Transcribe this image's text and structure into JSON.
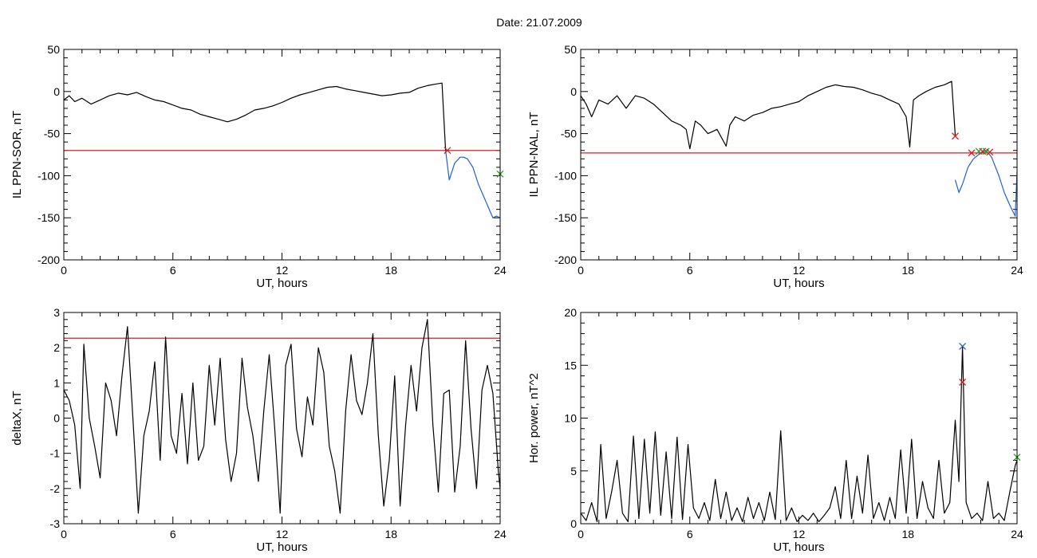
{
  "title": "Date:  21.07.2009",
  "chart_data": [
    {
      "type": "line",
      "xlabel": "UT, hours",
      "ylabel": "IL PPN-SOR, nT",
      "xlim": [
        0,
        24
      ],
      "ylim": [
        -200,
        50
      ],
      "xticks": [
        0,
        6,
        12,
        18,
        24
      ],
      "yticks": [
        -200,
        -150,
        -100,
        -50,
        0,
        50
      ],
      "threshold": -70,
      "series": [
        {
          "color": "#000000",
          "x": [
            0,
            0.3,
            0.6,
            1.0,
            1.5,
            2.0,
            2.5,
            3.0,
            3.5,
            4.0,
            4.5,
            5.0,
            5.5,
            6.0,
            6.5,
            7.0,
            7.5,
            8.0,
            8.5,
            9.0,
            9.5,
            10.0,
            10.5,
            11.0,
            11.5,
            12.0,
            12.5,
            13.0,
            13.5,
            14.0,
            14.5,
            15.0,
            15.5,
            16.0,
            16.5,
            17.0,
            17.5,
            18.0,
            18.5,
            19.0,
            19.5,
            20.0,
            20.5,
            20.8,
            21.0
          ],
          "values": [
            -10,
            -5,
            -12,
            -8,
            -15,
            -10,
            -5,
            -2,
            -4,
            -1,
            -6,
            -10,
            -12,
            -16,
            -20,
            -22,
            -27,
            -30,
            -33,
            -36,
            -33,
            -28,
            -22,
            -20,
            -17,
            -13,
            -8,
            -4,
            -1,
            2,
            5,
            6,
            3,
            1,
            -1,
            -3,
            -5,
            -4,
            -2,
            -1,
            4,
            7,
            9,
            10,
            -70
          ]
        },
        {
          "color": "#1f5fd6",
          "x": [
            21.0,
            21.2,
            21.5,
            21.8,
            22.0,
            22.2,
            22.5,
            22.8,
            23.0,
            23.2,
            23.4,
            23.6,
            23.8,
            24.0
          ],
          "values": [
            -70,
            -105,
            -85,
            -78,
            -78,
            -80,
            -90,
            -110,
            -120,
            -130,
            -140,
            -150,
            -148,
            -150
          ]
        }
      ],
      "markers": [
        {
          "x": 21.1,
          "y": -70,
          "color": "#d62020"
        },
        {
          "x": 24.0,
          "y": -98,
          "color": "#20a020"
        }
      ]
    },
    {
      "type": "line",
      "xlabel": "UT, hours",
      "ylabel": "IL PPN-NAL, nT",
      "xlim": [
        0,
        24
      ],
      "ylim": [
        -200,
        50
      ],
      "xticks": [
        0,
        6,
        12,
        18,
        24
      ],
      "yticks": [
        -200,
        -150,
        -100,
        -50,
        0,
        50
      ],
      "threshold": -73,
      "series": [
        {
          "color": "#000000",
          "x": [
            0,
            0.3,
            0.6,
            1.0,
            1.5,
            2.0,
            2.5,
            3.0,
            3.5,
            4.0,
            4.5,
            5.0,
            5.5,
            5.8,
            6.0,
            6.3,
            6.6,
            7.0,
            7.5,
            8.0,
            8.2,
            8.5,
            9.0,
            9.5,
            10.0,
            10.5,
            11.0,
            11.5,
            12.0,
            12.5,
            13.0,
            13.5,
            14.0,
            14.5,
            15.0,
            15.5,
            16.0,
            16.5,
            17.0,
            17.5,
            17.9,
            18.1,
            18.3,
            18.6,
            19.0,
            19.5,
            20.0,
            20.4,
            20.6
          ],
          "values": [
            -5,
            -15,
            -30,
            -10,
            -15,
            -5,
            -20,
            -5,
            -8,
            -15,
            -25,
            -35,
            -40,
            -45,
            -68,
            -35,
            -40,
            -50,
            -45,
            -65,
            -40,
            -30,
            -35,
            -28,
            -25,
            -20,
            -18,
            -15,
            -12,
            -5,
            0,
            5,
            8,
            6,
            5,
            2,
            -2,
            -5,
            -10,
            -15,
            -30,
            -66,
            -10,
            -5,
            0,
            5,
            8,
            12,
            -52
          ]
        },
        {
          "color": "#1f5fd6",
          "x": [
            20.6,
            20.8,
            21.0,
            21.3,
            21.6,
            22.0,
            22.3,
            22.6,
            23.0,
            23.3,
            23.6,
            23.9,
            24.0
          ],
          "values": [
            -105,
            -120,
            -110,
            -90,
            -80,
            -73,
            -70,
            -78,
            -100,
            -120,
            -135,
            -148,
            -95
          ]
        }
      ],
      "markers": [
        {
          "x": 20.6,
          "y": -53,
          "color": "#d62020"
        },
        {
          "x": 21.5,
          "y": -73,
          "color": "#d62020"
        },
        {
          "x": 21.9,
          "y": -71,
          "color": "#20a020"
        },
        {
          "x": 22.1,
          "y": -71,
          "color": "#d62020"
        },
        {
          "x": 22.3,
          "y": -71,
          "color": "#20a020"
        },
        {
          "x": 22.5,
          "y": -72,
          "color": "#d62020"
        }
      ]
    },
    {
      "type": "line",
      "xlabel": "UT, hours",
      "ylabel": "deltaX, nT",
      "xlim": [
        0,
        24
      ],
      "ylim": [
        -3,
        3
      ],
      "xticks": [
        0,
        6,
        12,
        18,
        24
      ],
      "yticks": [
        -3,
        -2,
        -1,
        0,
        1,
        2,
        3
      ],
      "threshold": 2.27,
      "series": [
        {
          "color": "#000000",
          "x": [
            0,
            0.3,
            0.6,
            0.9,
            1.1,
            1.4,
            1.7,
            2.0,
            2.3,
            2.6,
            2.9,
            3.2,
            3.5,
            3.8,
            4.1,
            4.4,
            4.7,
            5.0,
            5.3,
            5.6,
            5.9,
            6.2,
            6.5,
            6.8,
            7.1,
            7.4,
            7.7,
            8.0,
            8.3,
            8.6,
            8.9,
            9.2,
            9.5,
            9.8,
            10.1,
            10.4,
            10.7,
            11.0,
            11.3,
            11.6,
            11.9,
            12.2,
            12.5,
            12.8,
            13.1,
            13.4,
            13.7,
            14.0,
            14.3,
            14.6,
            14.9,
            15.2,
            15.5,
            15.8,
            16.1,
            16.4,
            16.7,
            17.0,
            17.3,
            17.6,
            17.9,
            18.2,
            18.5,
            18.8,
            19.1,
            19.4,
            19.7,
            20.0,
            20.3,
            20.6,
            20.9,
            21.2,
            21.5,
            21.8,
            22.1,
            22.4,
            22.7,
            23.0,
            23.3,
            23.6,
            23.9,
            24.0
          ],
          "values": [
            0.8,
            0.5,
            -0.2,
            -2.0,
            2.1,
            0.0,
            -0.8,
            -1.7,
            1.0,
            0.5,
            -0.5,
            1.2,
            2.6,
            0.0,
            -2.7,
            -0.5,
            0.2,
            1.6,
            -1.2,
            2.3,
            -0.5,
            -1.0,
            0.7,
            -1.3,
            1.0,
            -1.2,
            -0.8,
            1.5,
            -0.2,
            1.7,
            -0.6,
            -1.8,
            -1.0,
            1.7,
            0.3,
            -0.5,
            -1.8,
            0.2,
            1.8,
            -0.3,
            -2.7,
            1.5,
            2.1,
            -0.3,
            -1.1,
            0.6,
            -0.2,
            2.0,
            1.3,
            -0.8,
            -1.5,
            -2.7,
            0.2,
            1.8,
            0.5,
            0.1,
            1.0,
            2.4,
            -0.5,
            -2.5,
            -1.2,
            1.2,
            -2.5,
            -0.2,
            1.5,
            0.2,
            2.0,
            2.8,
            -0.2,
            -2.1,
            0.7,
            0.8,
            -2.1,
            -0.8,
            2.2,
            -0.3,
            -2.0,
            0.8,
            1.5,
            0.7,
            -1.5,
            -2.0
          ]
        }
      ],
      "markers": []
    },
    {
      "type": "line",
      "xlabel": "UT, hours",
      "ylabel": "Hor. power, nT^2",
      "xlim": [
        0,
        24
      ],
      "ylim": [
        0,
        20
      ],
      "xticks": [
        0,
        6,
        12,
        18,
        24
      ],
      "yticks": [
        0,
        5,
        10,
        15,
        20
      ],
      "threshold": null,
      "series": [
        {
          "color": "#000000",
          "x": [
            0,
            0.3,
            0.6,
            0.9,
            1.1,
            1.4,
            1.7,
            2.0,
            2.3,
            2.6,
            2.9,
            3.2,
            3.5,
            3.8,
            4.1,
            4.4,
            4.7,
            5.0,
            5.3,
            5.6,
            5.9,
            6.2,
            6.5,
            6.8,
            7.1,
            7.4,
            7.7,
            8.0,
            8.3,
            8.6,
            8.9,
            9.2,
            9.5,
            9.8,
            10.1,
            10.4,
            10.7,
            11.0,
            11.3,
            11.6,
            11.9,
            12.2,
            12.5,
            12.8,
            13.1,
            13.4,
            13.7,
            14.0,
            14.3,
            14.6,
            14.9,
            15.2,
            15.5,
            15.8,
            16.1,
            16.4,
            16.7,
            17.0,
            17.3,
            17.6,
            17.9,
            18.2,
            18.5,
            18.8,
            19.1,
            19.4,
            19.7,
            20.0,
            20.3,
            20.6,
            20.8,
            21.0,
            21.2,
            21.5,
            21.8,
            22.1,
            22.4,
            22.7,
            23.0,
            23.3,
            23.6,
            23.9,
            24.0
          ],
          "values": [
            1.0,
            0.3,
            2.0,
            0.2,
            7.5,
            0.5,
            3.0,
            6.0,
            1.0,
            0.2,
            8.3,
            0.5,
            8.0,
            1.0,
            8.7,
            0.8,
            6.8,
            0.5,
            8.2,
            0.4,
            7.5,
            1.5,
            0.5,
            2.0,
            0.3,
            4.2,
            0.5,
            3.0,
            0.3,
            1.5,
            0.2,
            2.5,
            0.5,
            2.0,
            0.3,
            3.0,
            0.4,
            8.8,
            0.3,
            1.5,
            0.2,
            0.8,
            0.3,
            1.0,
            0.2,
            0.8,
            1.5,
            3.5,
            0.5,
            6.0,
            0.5,
            4.5,
            1.0,
            6.5,
            0.5,
            2.0,
            0.3,
            2.5,
            0.5,
            7.0,
            1.0,
            8.0,
            0.5,
            4.0,
            1.5,
            0.5,
            6.0,
            1.0,
            2.0,
            9.8,
            4.0,
            16.8,
            2.0,
            0.5,
            1.0,
            0.3,
            4.0,
            0.5,
            1.0,
            0.3,
            3.0,
            5.5,
            6.0
          ]
        }
      ],
      "markers": [
        {
          "x": 21.0,
          "y": 16.8,
          "color": "#1f5fd6"
        },
        {
          "x": 21.0,
          "y": 13.4,
          "color": "#d62020"
        },
        {
          "x": 24.0,
          "y": 6.3,
          "color": "#20a020"
        }
      ]
    }
  ]
}
